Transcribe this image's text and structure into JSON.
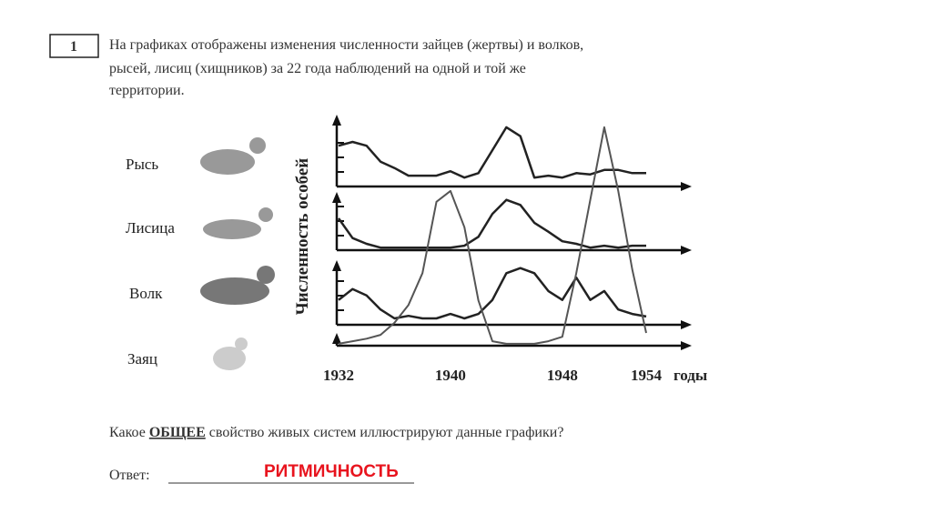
{
  "task": {
    "number": "1",
    "lines": [
      "На графиках отображены изменения численности зайцев (жертвы) и волков,",
      "рысей, лисиц (хищников) за 22 года наблюдений на одной и той же",
      "территории."
    ],
    "question": {
      "before": "Какое ",
      "emph": "ОБЩЕЕ",
      "after": " свойство живых систем иллюстрируют данные графики?"
    },
    "answer_label": "Ответ:",
    "answer": "РИТМИЧНОСТЬ"
  },
  "chart_data": {
    "type": "line",
    "ylabel": "Численность особей",
    "xlabel": "годы",
    "x": [
      1932,
      1933,
      1934,
      1935,
      1936,
      1937,
      1938,
      1939,
      1940,
      1941,
      1942,
      1943,
      1944,
      1945,
      1946,
      1947,
      1948,
      1949,
      1950,
      1951,
      1952,
      1953,
      1954
    ],
    "xticks": [
      1932,
      1940,
      1948,
      1954
    ],
    "series": [
      {
        "name": "Рысь",
        "color": "#222",
        "values": [
          6.4,
          7,
          6.4,
          3.9,
          2.9,
          1.7,
          1.7,
          1.7,
          2.4,
          1.4,
          2.1,
          5.7,
          9.3,
          7.9,
          1.4,
          1.7,
          1.4,
          2.1,
          1.9,
          2.6,
          2.6,
          2.1,
          2.1
        ]
      },
      {
        "name": "Лисица",
        "color": "#222",
        "values": [
          5,
          1.9,
          1,
          0.4,
          0.4,
          0.4,
          0.4,
          0.4,
          0.4,
          0.7,
          2.1,
          5.7,
          7.9,
          7.1,
          4.3,
          2.9,
          1.4,
          1,
          0.4,
          0.7,
          0.4,
          0.7,
          0.7
        ]
      },
      {
        "name": "Волк",
        "color": "#222",
        "values": [
          3.9,
          5.6,
          4.6,
          2.4,
          1,
          1.4,
          1,
          1,
          1.7,
          1,
          1.7,
          3.9,
          8.1,
          8.9,
          8.1,
          5.3,
          3.9,
          7.4,
          3.9,
          5.3,
          2.4,
          1.7,
          1.3
        ]
      },
      {
        "name": "Заяц",
        "color": "#555",
        "values": [
          0.3,
          0.7,
          1.1,
          1.7,
          3.6,
          6.4,
          11.4,
          22.6,
          24.3,
          18.6,
          7.1,
          0.7,
          0.3,
          0.3,
          0.3,
          0.7,
          1.4,
          11.4,
          22.9,
          34.3,
          24.3,
          12,
          2
        ]
      }
    ]
  }
}
